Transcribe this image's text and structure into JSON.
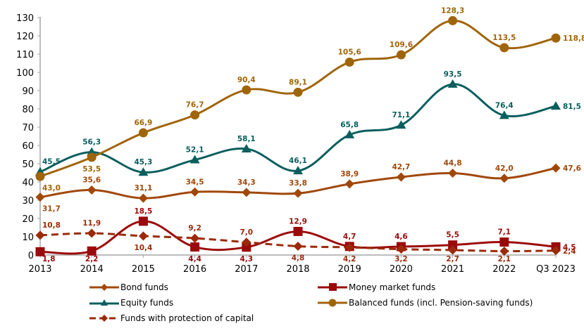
{
  "chart_data": {
    "type": "line",
    "title": "",
    "xlabel": "",
    "ylabel": "",
    "categories": [
      "2013",
      "2014",
      "2015",
      "2016",
      "2017",
      "2018",
      "2019",
      "2020",
      "2021",
      "2022",
      "Q3 2023"
    ],
    "ylim": [
      0,
      130
    ],
    "yticks": [
      0,
      10,
      20,
      30,
      40,
      50,
      60,
      70,
      80,
      90,
      100,
      110,
      120,
      130
    ],
    "grid": false,
    "smooth": true,
    "legend_position": "bottom",
    "decimal_separator": ",",
    "series": [
      {
        "name": "Bond funds",
        "color": "#A0480A",
        "marker": "diamond",
        "dash": false,
        "values": [
          31.7,
          35.6,
          31.1,
          34.5,
          34.3,
          33.8,
          38.9,
          42.7,
          44.8,
          42.0,
          47.6
        ],
        "label_positions": [
          "below",
          "above",
          "above",
          "above",
          "above",
          "above",
          "above",
          "above",
          "above",
          "above",
          "right"
        ]
      },
      {
        "name": "Money market funds",
        "color": "#9B0A0A",
        "marker": "square",
        "dash": false,
        "values": [
          1.8,
          2.2,
          18.5,
          4.4,
          4.3,
          12.9,
          4.7,
          4.6,
          5.5,
          7.1,
          4.5
        ],
        "label_positions": [
          "below",
          "below",
          "above",
          "below",
          "below",
          "above",
          "above",
          "above",
          "above",
          "above",
          "right"
        ]
      },
      {
        "name": "Equity funds",
        "color": "#0B5E5E",
        "marker": "triangle",
        "dash": false,
        "values": [
          45.5,
          56.3,
          45.3,
          52.1,
          58.1,
          46.1,
          65.8,
          71.1,
          93.5,
          76.4,
          81.5
        ],
        "label_positions": [
          "above",
          "above",
          "above",
          "above",
          "above",
          "above",
          "above",
          "above",
          "above",
          "above",
          "right"
        ]
      },
      {
        "name": "Balanced funds (incl. Pension-saving funds)",
        "color": "#A0650A",
        "marker": "circle",
        "dash": false,
        "values": [
          43.0,
          53.5,
          66.9,
          76.7,
          90.4,
          89.1,
          105.6,
          109.6,
          128.3,
          113.5,
          118.8
        ],
        "label_positions": [
          "below",
          "below",
          "above",
          "above",
          "above",
          "above",
          "above",
          "above",
          "above",
          "above",
          "right"
        ]
      },
      {
        "name": "Funds with protection of capital",
        "color": "#9B2A0A",
        "marker": "diamond",
        "dash": true,
        "values": [
          10.8,
          11.9,
          10.4,
          9.2,
          7.0,
          4.8,
          4.2,
          3.2,
          2.7,
          2.1,
          2.4
        ],
        "label_positions": [
          "above",
          "above",
          "below",
          "above",
          "above",
          "below",
          "below",
          "below",
          "below",
          "below",
          "right"
        ]
      }
    ]
  },
  "legend": {
    "items": [
      {
        "label": "Bond funds"
      },
      {
        "label": "Money market funds"
      },
      {
        "label": "Equity funds"
      },
      {
        "label": "Balanced funds (incl. Pension-saving funds)"
      },
      {
        "label": "Funds with protection of capital"
      }
    ]
  }
}
